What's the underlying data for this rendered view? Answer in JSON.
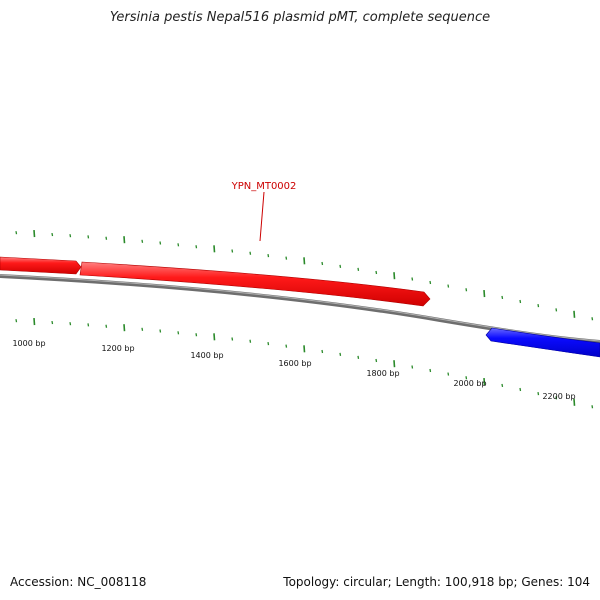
{
  "title": "Yersinia pestis Nepal516 plasmid pMT, complete sequence",
  "accession": "Accession: NC_008118",
  "summary": "Topology: circular; Length: 100,918 bp; Genes: 104",
  "gene_label": "YPN_MT0002",
  "bp_labels": [
    "1000 bp",
    "1200 bp",
    "1400 bp",
    "1600 bp",
    "1800 bp",
    "2000 bp",
    "2200 bp"
  ],
  "colors": {
    "forward_gene": "#ff2020",
    "reverse_gene": "#1010ff",
    "backbone": "#888888",
    "tick": "#2a8a2a",
    "gene_label": "#cc0000"
  }
}
